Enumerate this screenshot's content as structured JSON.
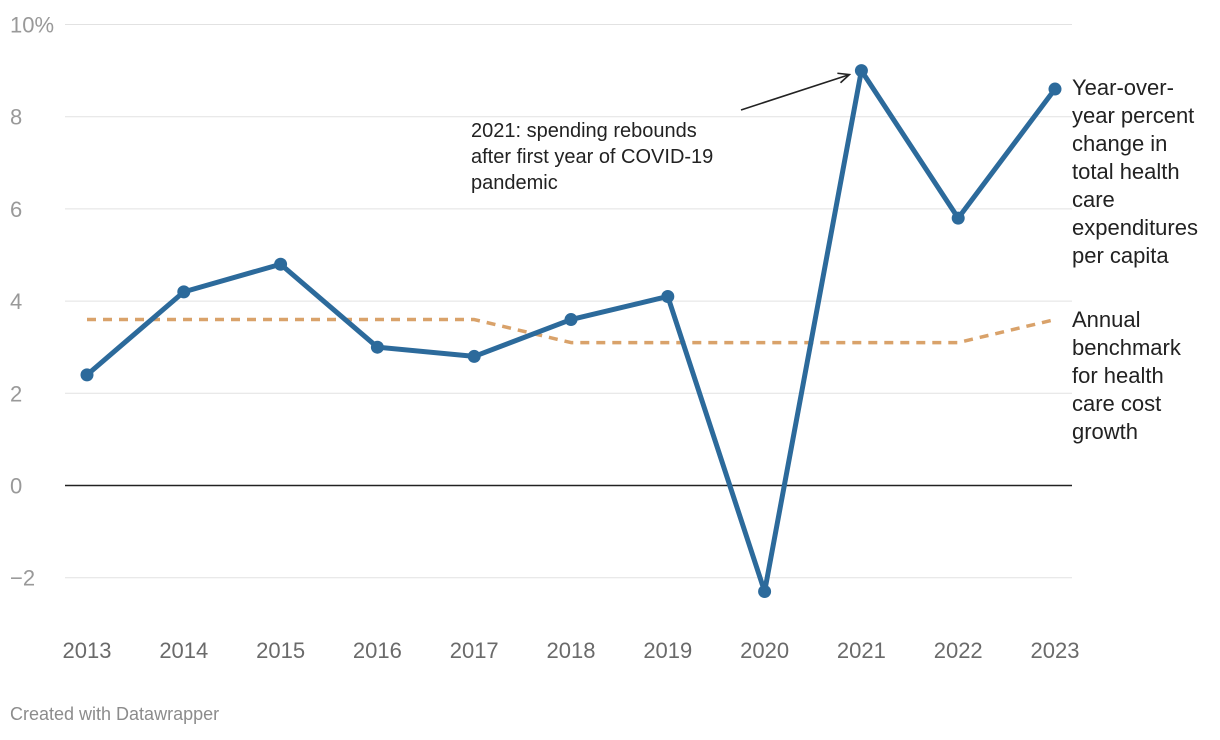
{
  "chart_data": {
    "type": "line",
    "x": [
      "2013",
      "2014",
      "2015",
      "2016",
      "2017",
      "2018",
      "2019",
      "2020",
      "2021",
      "2022",
      "2023"
    ],
    "series": [
      {
        "name": "Year-over-year percent change in total health care expenditures per capita",
        "label_lines": [
          "Year-over-",
          "year percent",
          "change in",
          "total health",
          "care",
          "expenditures",
          "per capita"
        ],
        "values": [
          2.4,
          4.2,
          4.8,
          3.0,
          2.8,
          3.6,
          4.1,
          -2.3,
          9.0,
          5.8,
          8.6
        ],
        "color": "#2c6a9b",
        "style": "solid",
        "markers": true
      },
      {
        "name": "Annual benchmark for health care cost growth",
        "label_lines": [
          "Annual",
          "benchmark",
          "for health",
          "care cost",
          "growth"
        ],
        "values": [
          3.6,
          3.6,
          3.6,
          3.6,
          3.6,
          3.1,
          3.1,
          3.1,
          3.1,
          3.1,
          3.6
        ],
        "color": "#d9a26a",
        "style": "dashed",
        "markers": false
      }
    ],
    "y_ticks": [
      10,
      8,
      6,
      4,
      2,
      0,
      -2
    ],
    "y_tick_labels": [
      "10%",
      "8",
      "6",
      "4",
      "2",
      "0",
      "−2"
    ],
    "ylim": [
      -3,
      10
    ],
    "annotation": {
      "text_lines": [
        "2021: spending rebounds",
        "after first year of COVID-19",
        "pandemic"
      ],
      "points_to": "2021"
    },
    "credit": "Created with Datawrapper"
  }
}
